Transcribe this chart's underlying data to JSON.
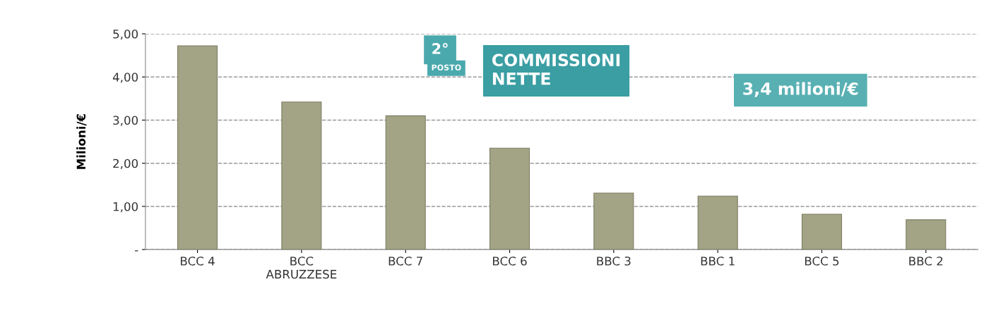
{
  "chart_data": {
    "type": "bar",
    "categories": [
      "BCC 4",
      "BCC\nABRUZZESE",
      "BCC 7",
      "BCC 6",
      "BBC 3",
      "BBC 1",
      "BCC 5",
      "BBC 2"
    ],
    "values": [
      4.72,
      3.42,
      3.1,
      2.35,
      1.31,
      1.24,
      0.82,
      0.69
    ],
    "color": "#a3a386",
    "ylabel": "Milioni/€",
    "ylim": [
      0,
      5
    ],
    "yticks": [
      {
        "value": 0,
        "label": "-"
      },
      {
        "value": 1,
        "label": "1,00"
      },
      {
        "value": 2,
        "label": "2,00"
      },
      {
        "value": 3,
        "label": "3,00"
      },
      {
        "value": 4,
        "label": "4,00"
      },
      {
        "value": 5,
        "label": "5,00"
      }
    ],
    "grid": "y",
    "annotations": [
      "2°",
      "POSTO",
      "COMMISSIONI\nNETTE",
      "3,4 milioni/€"
    ]
  }
}
